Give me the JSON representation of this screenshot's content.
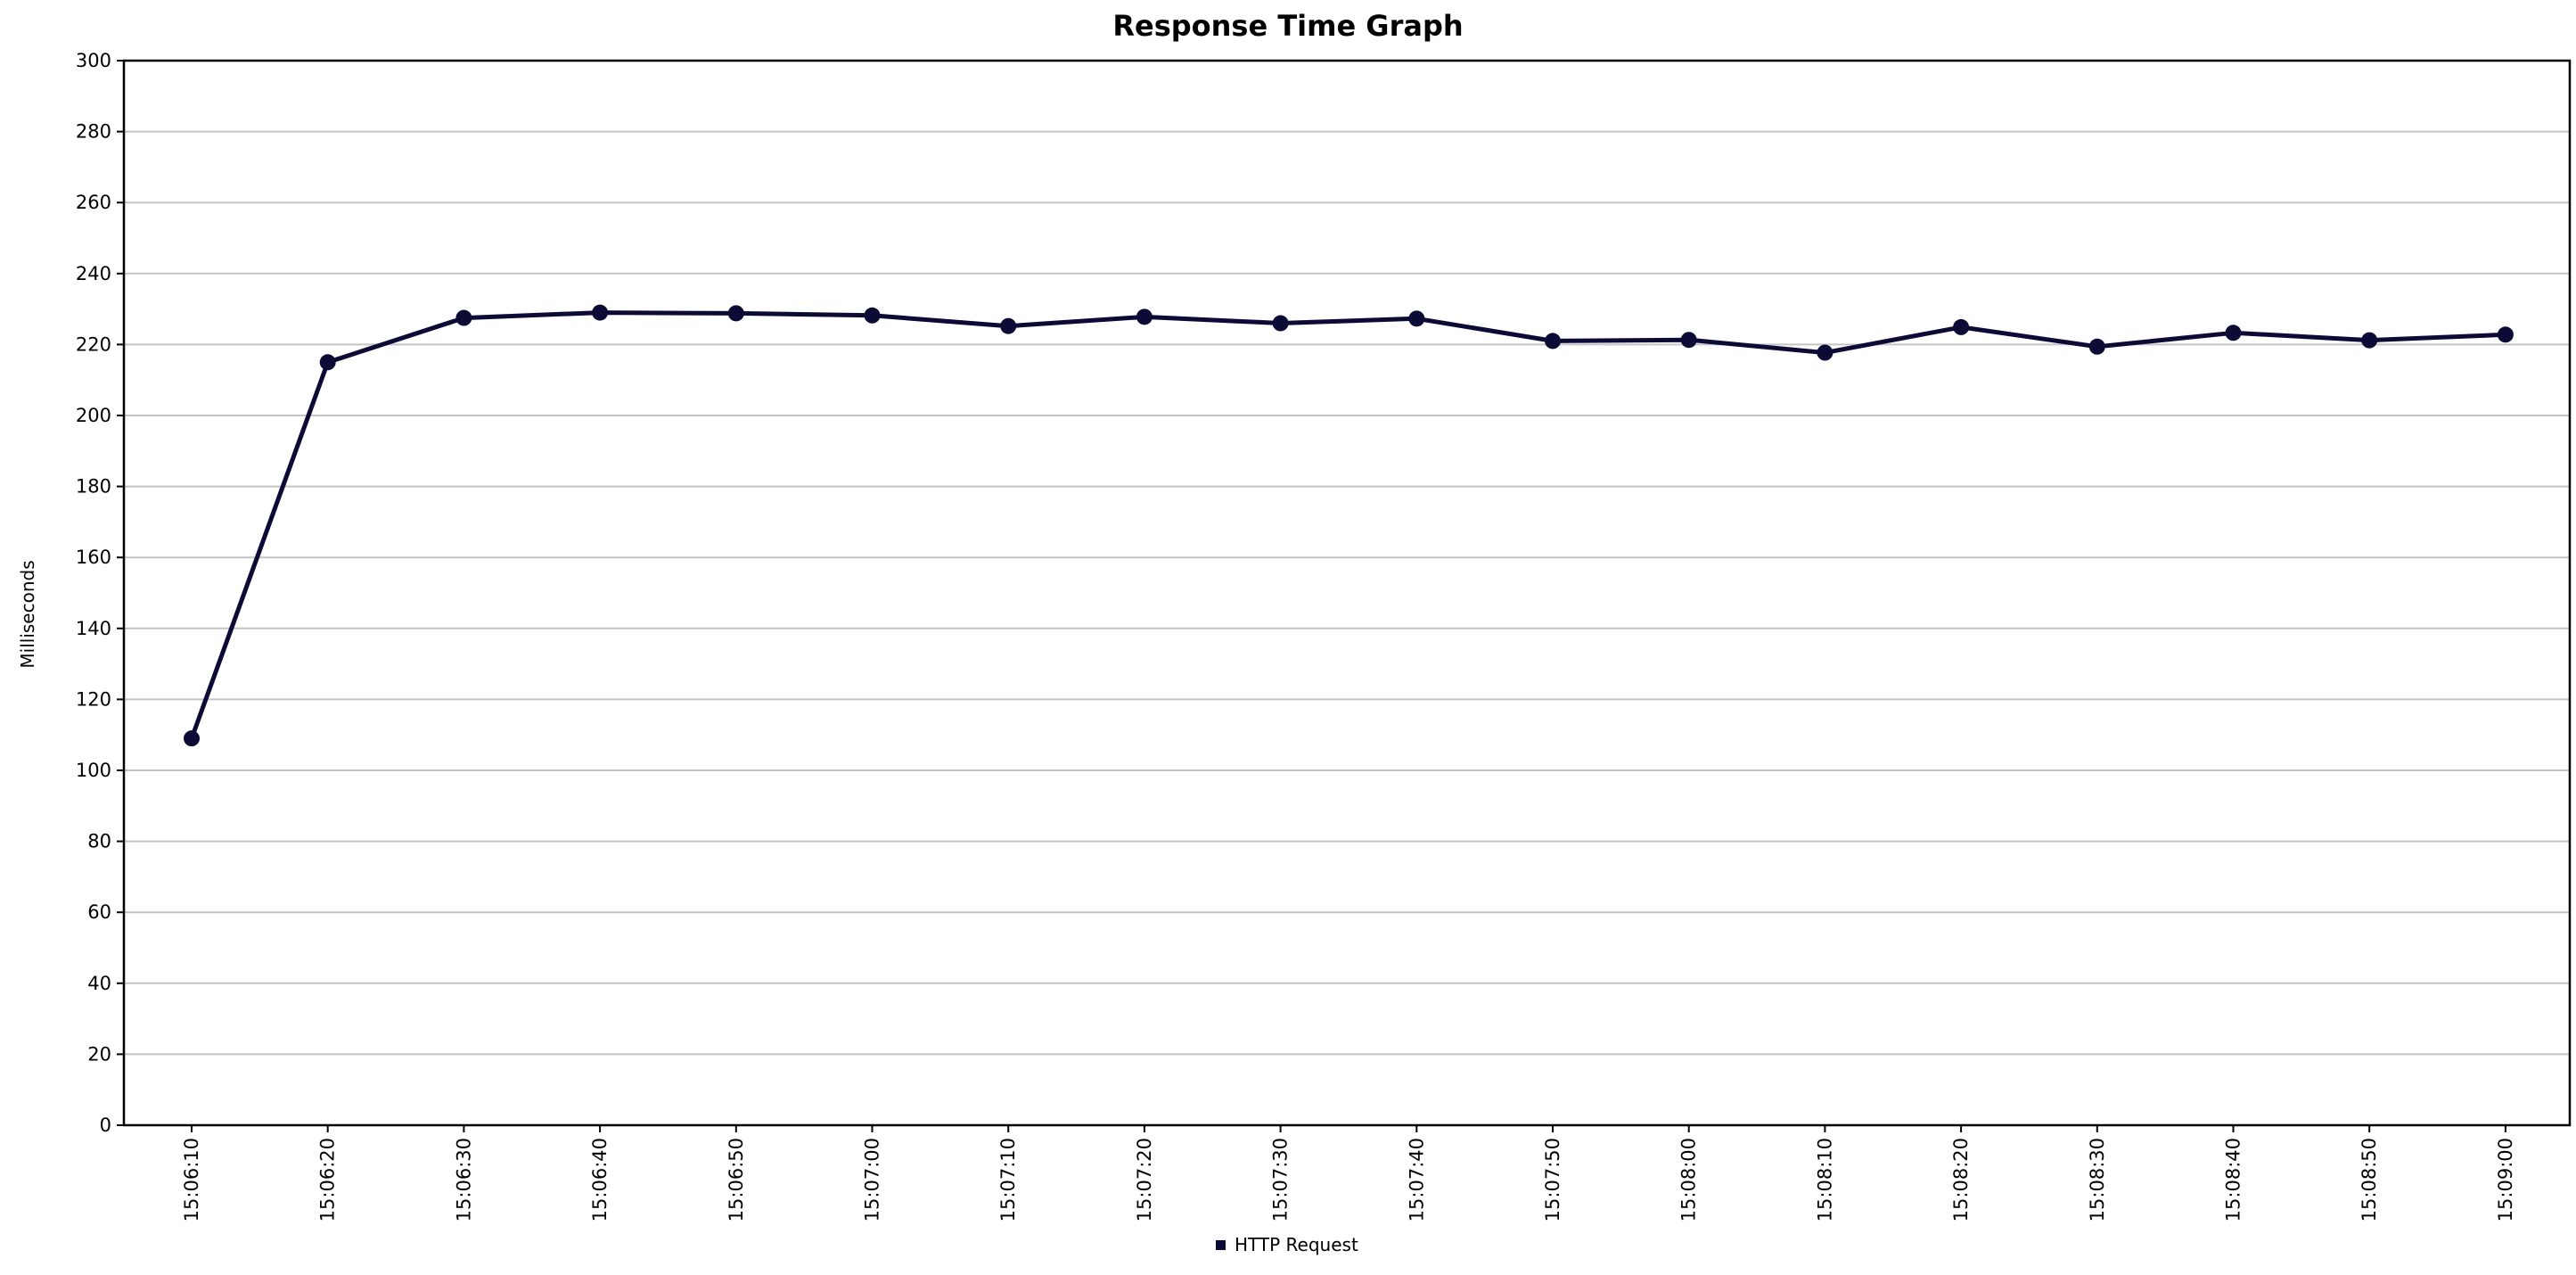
{
  "chart_data": {
    "type": "line",
    "title": "Response Time Graph",
    "xlabel": "",
    "ylabel": "Milliseconds",
    "ylim": [
      0,
      300
    ],
    "yticks": [
      "0",
      "20",
      "40",
      "60",
      "80",
      "100",
      "120",
      "140",
      "160",
      "180",
      "200",
      "220",
      "240",
      "260",
      "280",
      "300"
    ],
    "categories": [
      "15:06:10",
      "15:06:20",
      "15:06:30",
      "15:06:40",
      "15:06:50",
      "15:07:00",
      "15:07:10",
      "15:07:20",
      "15:07:30",
      "15:07:40",
      "15:07:50",
      "15:08:00",
      "15:08:10",
      "15:08:20",
      "15:08:30",
      "15:08:40",
      "15:08:50",
      "15:09:00"
    ],
    "series": [
      {
        "name": "HTTP Request",
        "color": "#0b0b36",
        "values": [
          109,
          215,
          227.5,
          229,
          228.8,
          228.2,
          225.2,
          227.8,
          226,
          227.3,
          221,
          221.3,
          217.7,
          224.9,
          219.4,
          223.3,
          221.2,
          222.8
        ]
      }
    ],
    "grid": true,
    "legend_position": "bottom-center"
  }
}
